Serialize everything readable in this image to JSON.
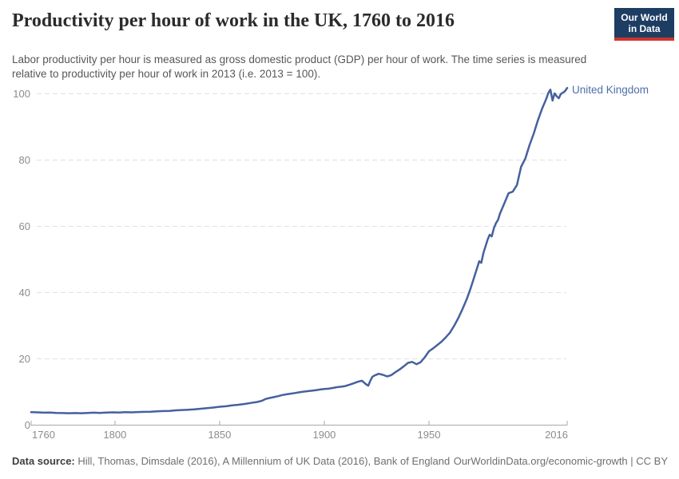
{
  "header": {
    "title": "Productivity per hour of work in the UK, 1760 to 2016",
    "subtitle": "Labor productivity per hour is measured as gross domestic product (GDP) per hour of work. The time series is measured relative to productivity per hour of work in 2013 (i.e. 2013 = 100).",
    "logo": {
      "line1": "Our World",
      "line2": "in Data"
    }
  },
  "footer": {
    "source_label": "Data source:",
    "source_text": " Hill, Thomas, Dimsdale (2016), A Millennium of UK Data (2016), Bank of England",
    "license_text": "OurWorldinData.org/economic-growth | CC BY"
  },
  "colors": {
    "line": "#45619d",
    "series_label": "#4f6fa8",
    "grid": "#e0e0e0",
    "axis": "#a8a8a8",
    "tick_label": "#8c8c8c",
    "logo_bg": "#1d3d63",
    "logo_accent": "#d0342c"
  },
  "chart_data": {
    "type": "line",
    "title": "Productivity per hour of work in the UK, 1760 to 2016",
    "xlabel": "",
    "ylabel": "",
    "xlim": [
      1760,
      2016
    ],
    "ylim": [
      0,
      100
    ],
    "x_ticks": [
      1760,
      1800,
      1850,
      1900,
      1950,
      2016
    ],
    "y_ticks": [
      0,
      20,
      40,
      60,
      80,
      100
    ],
    "grid": "horizontal-dashed",
    "legend": "end-of-line-label",
    "series": [
      {
        "name": "United Kingdom",
        "color": "#45619d",
        "points": [
          [
            1760,
            3.9
          ],
          [
            1763,
            3.85
          ],
          [
            1766,
            3.75
          ],
          [
            1769,
            3.8
          ],
          [
            1772,
            3.7
          ],
          [
            1775,
            3.65
          ],
          [
            1778,
            3.6
          ],
          [
            1781,
            3.65
          ],
          [
            1784,
            3.6
          ],
          [
            1787,
            3.7
          ],
          [
            1790,
            3.75
          ],
          [
            1793,
            3.7
          ],
          [
            1796,
            3.8
          ],
          [
            1799,
            3.85
          ],
          [
            1802,
            3.8
          ],
          [
            1805,
            3.9
          ],
          [
            1808,
            3.85
          ],
          [
            1811,
            3.95
          ],
          [
            1814,
            4.0
          ],
          [
            1817,
            4.05
          ],
          [
            1820,
            4.15
          ],
          [
            1823,
            4.25
          ],
          [
            1826,
            4.3
          ],
          [
            1829,
            4.45
          ],
          [
            1832,
            4.55
          ],
          [
            1835,
            4.65
          ],
          [
            1838,
            4.75
          ],
          [
            1841,
            4.95
          ],
          [
            1844,
            5.1
          ],
          [
            1847,
            5.3
          ],
          [
            1850,
            5.55
          ],
          [
            1853,
            5.7
          ],
          [
            1856,
            5.95
          ],
          [
            1859,
            6.15
          ],
          [
            1862,
            6.4
          ],
          [
            1865,
            6.7
          ],
          [
            1868,
            7.0
          ],
          [
            1870,
            7.3
          ],
          [
            1872,
            7.9
          ],
          [
            1874,
            8.2
          ],
          [
            1876,
            8.45
          ],
          [
            1878,
            8.75
          ],
          [
            1880,
            9.1
          ],
          [
            1882,
            9.3
          ],
          [
            1884,
            9.5
          ],
          [
            1886,
            9.7
          ],
          [
            1888,
            9.9
          ],
          [
            1890,
            10.1
          ],
          [
            1892,
            10.25
          ],
          [
            1894,
            10.4
          ],
          [
            1896,
            10.55
          ],
          [
            1898,
            10.75
          ],
          [
            1900,
            10.9
          ],
          [
            1902,
            11.0
          ],
          [
            1904,
            11.2
          ],
          [
            1906,
            11.45
          ],
          [
            1908,
            11.6
          ],
          [
            1910,
            11.8
          ],
          [
            1912,
            12.2
          ],
          [
            1914,
            12.6
          ],
          [
            1916,
            13.1
          ],
          [
            1918,
            13.4
          ],
          [
            1920,
            12.3
          ],
          [
            1921,
            11.9
          ],
          [
            1922,
            13.4
          ],
          [
            1923,
            14.6
          ],
          [
            1924,
            15.0
          ],
          [
            1926,
            15.5
          ],
          [
            1928,
            15.2
          ],
          [
            1930,
            14.7
          ],
          [
            1932,
            15.1
          ],
          [
            1934,
            16.0
          ],
          [
            1936,
            16.8
          ],
          [
            1938,
            17.8
          ],
          [
            1940,
            18.8
          ],
          [
            1942,
            19.1
          ],
          [
            1944,
            18.4
          ],
          [
            1946,
            19.0
          ],
          [
            1948,
            20.5
          ],
          [
            1950,
            22.3
          ],
          [
            1952,
            23.2
          ],
          [
            1954,
            24.2
          ],
          [
            1956,
            25.2
          ],
          [
            1958,
            26.5
          ],
          [
            1960,
            27.9
          ],
          [
            1962,
            30.0
          ],
          [
            1964,
            32.3
          ],
          [
            1966,
            35.0
          ],
          [
            1968,
            38.0
          ],
          [
            1970,
            41.5
          ],
          [
            1972,
            45.5
          ],
          [
            1974,
            49.5
          ],
          [
            1975,
            49.0
          ],
          [
            1976,
            52.0
          ],
          [
            1977,
            54.0
          ],
          [
            1978,
            56.0
          ],
          [
            1979,
            57.5
          ],
          [
            1980,
            57.0
          ],
          [
            1981,
            59.5
          ],
          [
            1982,
            61.0
          ],
          [
            1983,
            62.0
          ],
          [
            1984,
            64.0
          ],
          [
            1986,
            67.0
          ],
          [
            1988,
            70.0
          ],
          [
            1990,
            70.5
          ],
          [
            1992,
            72.5
          ],
          [
            1994,
            78.0
          ],
          [
            1996,
            80.5
          ],
          [
            1998,
            84.5
          ],
          [
            2000,
            88.0
          ],
          [
            2002,
            92.0
          ],
          [
            2004,
            95.5
          ],
          [
            2006,
            98.5
          ],
          [
            2007,
            100.3
          ],
          [
            2008,
            101.3
          ],
          [
            2009,
            98.0
          ],
          [
            2010,
            100.2
          ],
          [
            2011,
            99.3
          ],
          [
            2012,
            98.7
          ],
          [
            2013,
            100.0
          ],
          [
            2014,
            100.4
          ],
          [
            2015,
            100.9
          ],
          [
            2016,
            101.8
          ]
        ]
      }
    ]
  }
}
